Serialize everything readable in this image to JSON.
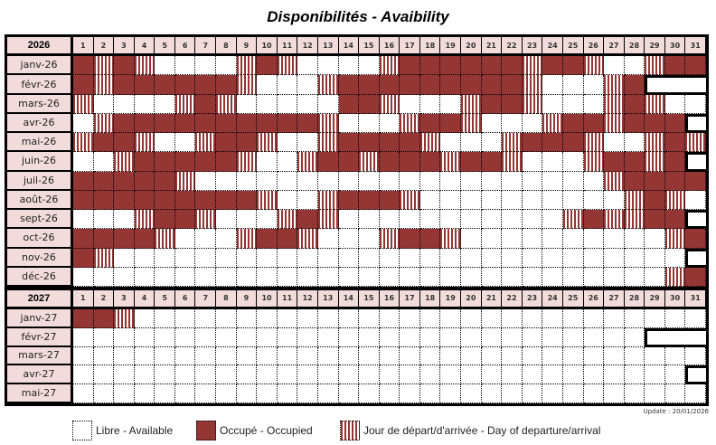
{
  "title": "Disponibilités - Avaibility",
  "colors": {
    "occupied": "#943634",
    "header_bg": "#f2dcdb",
    "free": "#ffffff"
  },
  "state_codes": {
    "F": "free",
    "O": "occupied",
    "S": "departure/arrival"
  },
  "days": [
    "1",
    "2",
    "3",
    "4",
    "5",
    "6",
    "7",
    "8",
    "9",
    "10",
    "11",
    "12",
    "13",
    "14",
    "15",
    "16",
    "17",
    "18",
    "19",
    "20",
    "21",
    "22",
    "23",
    "24",
    "25",
    "26",
    "27",
    "28",
    "29",
    "30",
    "31"
  ],
  "calendar": {
    "years": [
      {
        "year": "2026",
        "months": [
          {
            "label": "janv-26",
            "states": "OSOSFFFFSOSFFFFSOOOOOOSOOSFFSOO"
          },
          {
            "label": "févr-26",
            "states": "OSOOOOOOSFFFSOOOOOOOOOSFFFSO"
          },
          {
            "label": "mars-26",
            "states": "SFFFFSOSFFFFFOOSFFFSOOSFFFSOSFF"
          },
          {
            "label": "avr-26",
            "states": "FSOOOOOOOOOOSFFFSOOSFFFSOOSOOO"
          },
          {
            "label": "mai-26",
            "states": "SOOSFFSOOSFFSOOOOSFFFSOOOSFFSOS"
          },
          {
            "label": "juin-26",
            "states": "FFSOOOOOSFFSOOSOOOSOOSFFFSOOSO"
          },
          {
            "label": "juil-26",
            "states": "OOOOOSFFFFFFFFFFFFFFFFFFFFSOOOO"
          },
          {
            "label": "août-26",
            "states": "OOOOOOOOOSFFSOOOSFFFFFFFFFFSOSF"
          },
          {
            "label": "sept-26",
            "states": "FFFSOOSFFFSOSFFFFFFFFFFFSOSSOO"
          },
          {
            "label": "oct-26",
            "states": "OOOOSFFFSOOSFFFSOOSFFFFFFFFFFSO"
          },
          {
            "label": "nov-26",
            "states": "OSFFFFFFFFFFFFFFFFFFFFFFFFFFFF"
          },
          {
            "label": "déc-26",
            "states": "FFFFFFFFFFFFFFFFFFFFFFFFFFFFFSO"
          }
        ]
      },
      {
        "year": "2027",
        "months": [
          {
            "label": "janv-27",
            "states": "OOSFFFFFFFFFFFFFFFFFFFFFFFFFFFF"
          },
          {
            "label": "févr-27",
            "states": "FFFFFFFFFFFFFFFFFFFFFFFFFFFF"
          },
          {
            "label": "mars-27",
            "states": "FFFFFFFFFFFFFFFFFFFFFFFFFFFFFFF"
          },
          {
            "label": "avr-27",
            "states": "FFFFFFFFFFFFFFFFFFFFFFFFFFFFFF"
          },
          {
            "label": "mai-27",
            "states": "FFFFFFFFFFFFFFFFFFFFFFFFFFFFFFF"
          }
        ]
      }
    ]
  },
  "update": "Update : 20/01/2026",
  "legend": {
    "free": "Libre - Available",
    "occupied": "Occupé - Occupied",
    "departure_arrival": "Jour de départ/d'arrivée - Day of departure/arrival"
  }
}
